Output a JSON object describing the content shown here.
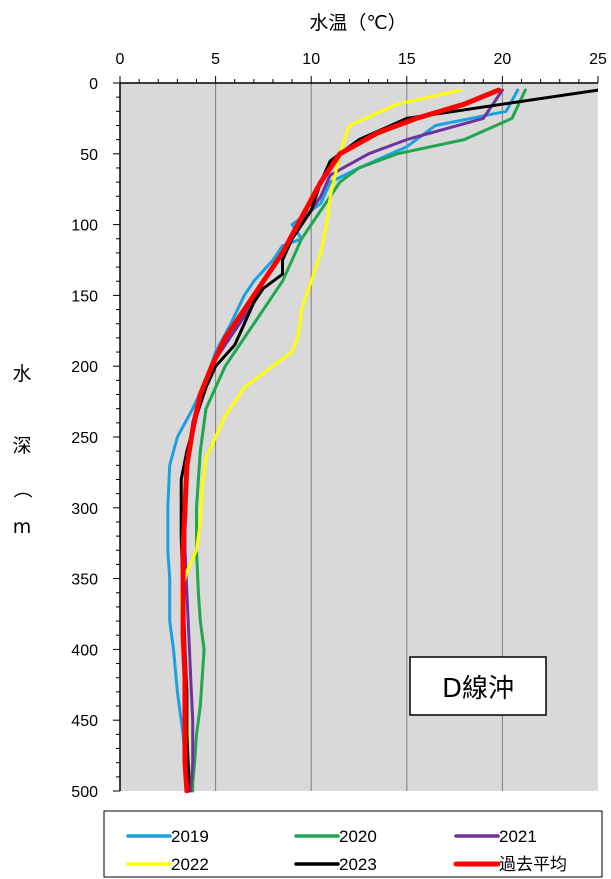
{
  "chart_data": {
    "type": "line",
    "xlabel": "水温（℃）",
    "ylabel": "水深（m）",
    "xlim": [
      0,
      25
    ],
    "ylim": [
      0,
      500
    ],
    "x_ticks": [
      0,
      5,
      10,
      15,
      20,
      25
    ],
    "y_ticks": [
      0,
      50,
      100,
      150,
      200,
      250,
      300,
      350,
      400,
      450,
      500
    ],
    "x_axis_position": "top",
    "y_inverted": true,
    "grid": true,
    "legend_position": "bottom",
    "annotation": "D線沖",
    "series": [
      {
        "name": "2019",
        "color": "#1BA1E2",
        "x": [
          20.8,
          20.2,
          16.5,
          15.0,
          12.5,
          11.0,
          10.5,
          9.5,
          9.0,
          9.5,
          8.5,
          8.0,
          7.0,
          6.5,
          5.8,
          5.0,
          4.5,
          3.8,
          3.0,
          2.6,
          2.5,
          2.5,
          2.6,
          2.6,
          2.8,
          3.0,
          3.3,
          3.5
        ],
        "y": [
          5,
          20,
          30,
          45,
          60,
          70,
          85,
          95,
          100,
          110,
          115,
          125,
          140,
          150,
          170,
          190,
          210,
          230,
          250,
          270,
          300,
          330,
          350,
          380,
          400,
          430,
          460,
          500
        ]
      },
      {
        "name": "2020",
        "color": "#1FA64F",
        "x": [
          21.2,
          20.5,
          18.0,
          14.5,
          12.5,
          11.5,
          10.5,
          9.5,
          9.0,
          8.5,
          7.5,
          6.5,
          5.5,
          4.5,
          4.2,
          4.0,
          4.0,
          4.1,
          4.2,
          4.4,
          4.3,
          4.2,
          4.0,
          3.9,
          3.8,
          3.8
        ],
        "y": [
          5,
          25,
          40,
          50,
          60,
          70,
          90,
          110,
          125,
          140,
          160,
          180,
          200,
          230,
          260,
          300,
          330,
          360,
          380,
          400,
          420,
          440,
          460,
          480,
          495,
          500
        ]
      },
      {
        "name": "2021",
        "color": "#7030A0",
        "x": [
          20.0,
          19.0,
          15.0,
          13.0,
          11.0,
          10.5,
          9.5,
          8.5,
          7.5,
          7.0,
          6.0,
          5.0,
          4.3,
          3.8,
          3.5,
          3.4,
          3.4,
          3.5,
          3.6,
          3.7,
          3.8,
          3.8,
          3.7
        ],
        "y": [
          5,
          25,
          40,
          50,
          65,
          80,
          100,
          120,
          140,
          155,
          175,
          195,
          215,
          240,
          270,
          300,
          330,
          360,
          390,
          420,
          450,
          480,
          500
        ]
      },
      {
        "name": "2022",
        "color": "#FFFF00",
        "x": [
          17.8,
          14.5,
          12.0,
          11.5,
          11.0,
          10.8,
          10.5,
          10.0,
          9.5,
          9.3,
          9.0,
          8.0,
          6.5,
          5.5,
          5.0,
          4.5,
          4.3,
          4.2,
          4.0,
          3.5,
          3.2,
          3.3,
          3.5,
          3.6,
          3.6
        ],
        "y": [
          5,
          15,
          30,
          50,
          80,
          100,
          120,
          140,
          160,
          180,
          190,
          200,
          215,
          235,
          250,
          265,
          285,
          310,
          330,
          345,
          360,
          400,
          440,
          480,
          500
        ]
      },
      {
        "name": "2023",
        "color": "#000000",
        "x": [
          25.0,
          20.0,
          15.0,
          12.5,
          11.0,
          10.5,
          10.0,
          9.0,
          8.5,
          8.5,
          7.5,
          7.0,
          6.5,
          6.0,
          5.0,
          4.5,
          4.0,
          3.5,
          3.2,
          3.2,
          3.3,
          3.4,
          3.5,
          3.5,
          3.6,
          3.6
        ],
        "y": [
          5,
          15,
          25,
          40,
          55,
          70,
          90,
          110,
          125,
          135,
          145,
          155,
          170,
          185,
          200,
          215,
          235,
          260,
          280,
          320,
          360,
          400,
          430,
          460,
          490,
          500
        ]
      },
      {
        "name": "過去平均",
        "color": "#FF0000",
        "x": [
          19.8,
          18.0,
          15.5,
          13.5,
          11.5,
          10.5,
          9.5,
          8.5,
          7.5,
          6.5,
          5.5,
          4.8,
          4.2,
          3.8,
          3.5,
          3.4,
          3.3,
          3.3,
          3.3,
          3.4,
          3.4,
          3.4,
          3.5
        ],
        "y": [
          5,
          15,
          25,
          35,
          50,
          70,
          95,
          120,
          140,
          160,
          180,
          200,
          220,
          245,
          270,
          300,
          330,
          360,
          390,
          420,
          450,
          480,
          500
        ]
      }
    ]
  },
  "legend": {
    "items": [
      {
        "label": "2019",
        "color": "#1BA1E2"
      },
      {
        "label": "2020",
        "color": "#1FA64F"
      },
      {
        "label": "2021",
        "color": "#7030A0"
      },
      {
        "label": "2022",
        "color": "#FFFF00"
      },
      {
        "label": "2023",
        "color": "#000000"
      },
      {
        "label": "過去平均",
        "color": "#FF0000"
      }
    ]
  }
}
